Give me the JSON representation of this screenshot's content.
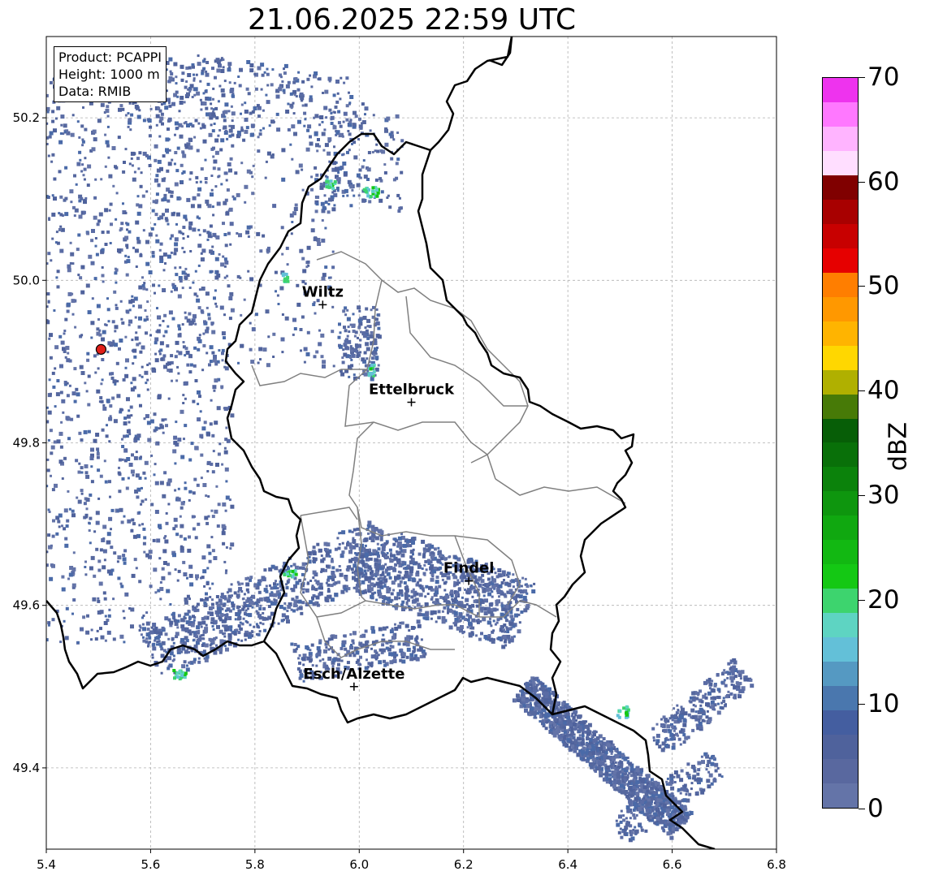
{
  "title": "21.06.2025 22:59 UTC",
  "info": {
    "product": "Product: PCAPPI",
    "height": "Height: 1000 m",
    "data": "Data: RMIB"
  },
  "map": {
    "lon_range": [
      5.4,
      6.8
    ],
    "lat_range": [
      49.3,
      50.3
    ],
    "x_ticks": [
      "5.4",
      "5.6",
      "5.8",
      "6.0",
      "6.2",
      "6.4",
      "6.6",
      "6.8"
    ],
    "y_ticks": [
      "49.4",
      "49.6",
      "49.8",
      "50.0",
      "50.2"
    ],
    "grid": true,
    "cities": [
      {
        "name": "Wiltz",
        "lon": 5.93,
        "lat": 49.97
      },
      {
        "name": "Ettelbruck",
        "lon": 6.1,
        "lat": 49.85
      },
      {
        "name": "Findel",
        "lon": 6.21,
        "lat": 49.63
      },
      {
        "name": "Esch/Alzette",
        "lon": 5.99,
        "lat": 49.5
      }
    ],
    "radar_site": {
      "lon": 5.505,
      "lat": 49.915,
      "color": "#e0201a"
    },
    "boundary_color": "#000000",
    "canton_color": "#808080"
  },
  "colorbar": {
    "label": "dBZ",
    "ticks": [
      "0",
      "10",
      "20",
      "30",
      "40",
      "50",
      "60",
      "70"
    ],
    "colors": [
      "#6474a8",
      "#59689f",
      "#4f629c",
      "#445ea0",
      "#4a77ae",
      "#5599c2",
      "#63c0d8",
      "#5ed4c2",
      "#3dd46e",
      "#14c814",
      "#12b812",
      "#10a810",
      "#0e960e",
      "#0b820b",
      "#097009",
      "#075e07",
      "#477a07",
      "#b0b000",
      "#ffd700",
      "#ffb400",
      "#ff9800",
      "#ff7e00",
      "#e60000",
      "#c80000",
      "#a80000",
      "#800000",
      "#ffdeff",
      "#ffb4ff",
      "#ff78ff",
      "#ee33ee"
    ]
  }
}
